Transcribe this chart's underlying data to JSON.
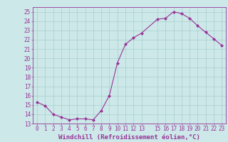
{
  "x": [
    0,
    1,
    2,
    3,
    4,
    5,
    6,
    7,
    8,
    9,
    10,
    11,
    12,
    13,
    15,
    16,
    17,
    18,
    19,
    20,
    21,
    22,
    23
  ],
  "y": [
    15.3,
    14.9,
    14.0,
    13.7,
    13.4,
    13.5,
    13.5,
    13.4,
    14.4,
    16.0,
    19.5,
    21.5,
    22.2,
    22.7,
    24.2,
    24.3,
    25.0,
    24.8,
    24.3,
    23.5,
    22.8,
    22.1,
    21.4
  ],
  "line_color": "#993399",
  "marker": "D",
  "marker_size": 2.0,
  "bg_color": "#cce8e8",
  "grid_color": "#aacece",
  "xlabel": "Windchill (Refroidissement éolien,°C)",
  "ylim": [
    13,
    25.5
  ],
  "xlim": [
    -0.5,
    23.5
  ],
  "ytick_vals": [
    13,
    14,
    15,
    16,
    17,
    18,
    19,
    20,
    21,
    22,
    23,
    24,
    25
  ],
  "xtick_vals": [
    0,
    1,
    2,
    3,
    4,
    5,
    6,
    7,
    8,
    9,
    10,
    11,
    12,
    13,
    15,
    16,
    17,
    18,
    19,
    20,
    21,
    22,
    23
  ],
  "tick_color": "#993399",
  "label_color": "#993399",
  "tick_fontsize": 5.5,
  "xlabel_fontsize": 6.5
}
